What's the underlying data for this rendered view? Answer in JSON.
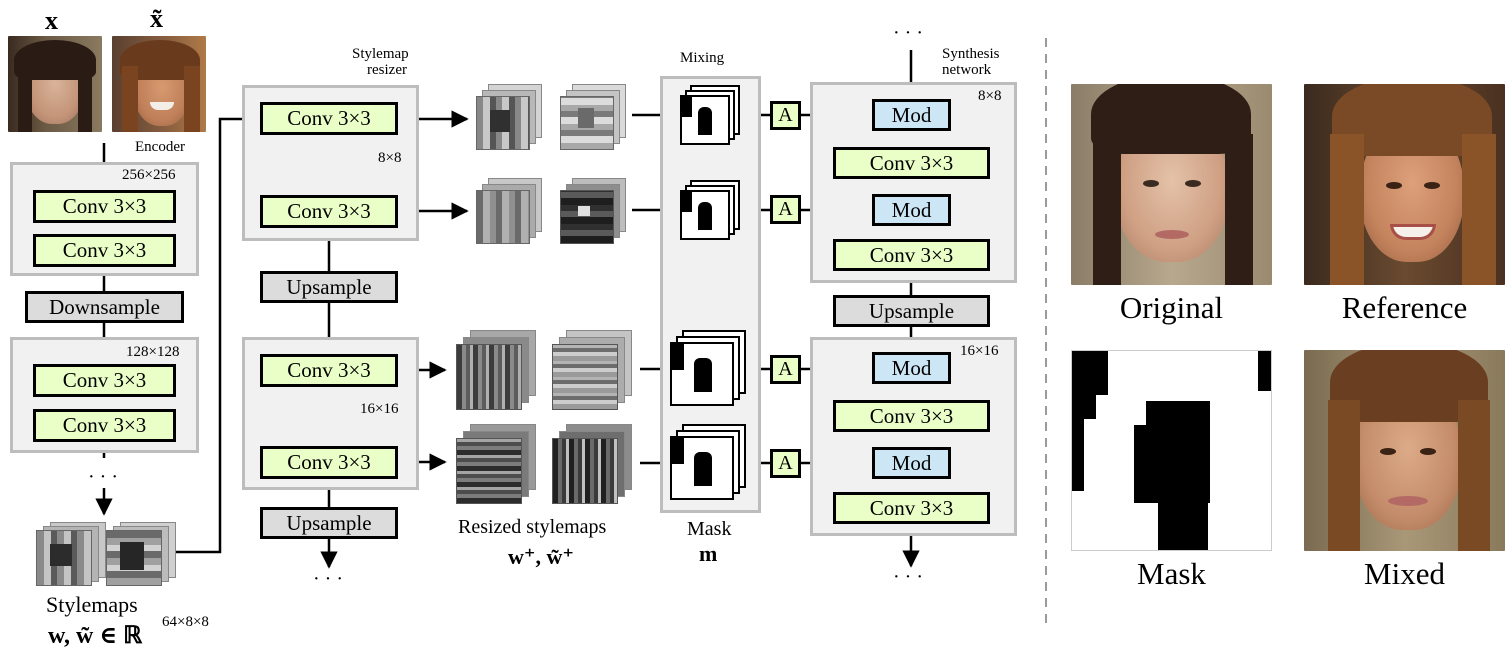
{
  "inputs": {
    "x_label": "x",
    "x_tilde_label": "x̃"
  },
  "encoder": {
    "label": "Encoder",
    "res_256": "256×256",
    "res_128": "128×128",
    "conv": "Conv 3×3",
    "downsample": "Downsample",
    "dots": "· · ·"
  },
  "stylemaps": {
    "label": "Stylemaps",
    "formula": "w, w̃ ∈ ℝ",
    "superscript": "64×8×8"
  },
  "resizer": {
    "label_line1": "Stylemap",
    "label_line2": "resizer",
    "conv": "Conv 3×3",
    "res_8": "8×8",
    "res_16": "16×16",
    "upsample": "Upsample",
    "dots": "· · ·"
  },
  "resized": {
    "label": "Resized stylemaps",
    "formula": "w⁺, w̃⁺"
  },
  "mixing": {
    "label": "Mixing",
    "mask_label": "Mask",
    "mask_symbol": "m"
  },
  "affine": {
    "label": "A"
  },
  "synthesis": {
    "label_line1": "Synthesis",
    "label_line2": "network",
    "mod": "Mod",
    "conv": "Conv 3×3",
    "upsample": "Upsample",
    "res_8": "8×8",
    "res_16": "16×16",
    "dots_top": "· · ·",
    "dots_bottom": "· · ·"
  },
  "results": {
    "original": "Original",
    "reference": "Reference",
    "mask": "Mask",
    "mixed": "Mixed"
  }
}
